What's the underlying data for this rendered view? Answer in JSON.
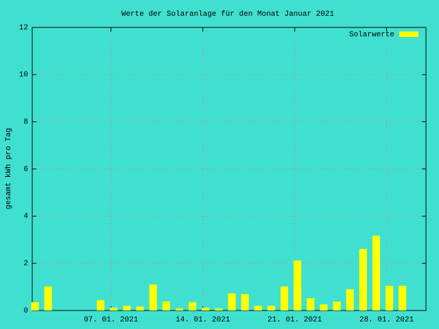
{
  "chart_data": {
    "type": "bar",
    "title": "Werte der Solaranlage für den Monat Januar 2021",
    "y_label": "gesamt kWh pro Tag",
    "series": [
      {
        "name": "Solarwerte",
        "color": "#ffff00",
        "x": [
          1,
          2,
          6,
          7,
          8,
          9,
          10,
          11,
          12,
          13,
          14,
          15,
          16,
          17,
          18,
          19,
          20,
          21,
          22,
          23,
          24,
          25,
          26,
          27,
          28,
          29
        ],
        "values": [
          0.35,
          1.02,
          0.44,
          0.12,
          0.2,
          0.17,
          1.1,
          0.38,
          0.09,
          0.35,
          0.12,
          0.09,
          0.73,
          0.7,
          0.2,
          0.2,
          1.02,
          2.12,
          0.52,
          0.26,
          0.38,
          0.9,
          2.61,
          3.17,
          1.05,
          1.05
        ]
      }
    ],
    "xlim": [
      1,
      31
    ],
    "xticks": [
      {
        "value": 7,
        "label": "07. 01. 2021"
      },
      {
        "value": 14,
        "label": "14. 01. 2021"
      },
      {
        "value": 21,
        "label": "21. 01. 2021"
      },
      {
        "value": 28,
        "label": "28. 01. 2021"
      }
    ],
    "ylim": [
      0,
      12
    ],
    "yticks": [
      0,
      2,
      4,
      6,
      8,
      10,
      12
    ],
    "grid": true,
    "legend": "top-right"
  }
}
